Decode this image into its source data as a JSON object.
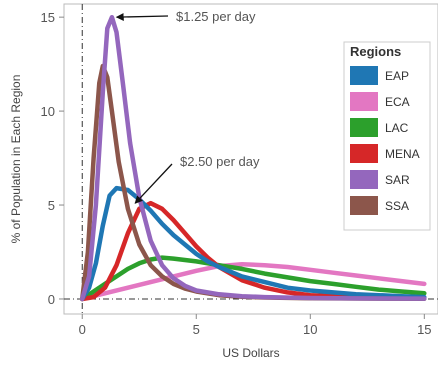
{
  "chart_data": {
    "type": "line",
    "xlabel": "US Dollars",
    "ylabel": "% of Population in Each Region",
    "xlim": [
      -0.8,
      15.6
    ],
    "ylim": [
      -0.8,
      15.7
    ],
    "x_ticks": [
      0,
      5,
      10,
      15
    ],
    "y_ticks": [
      0,
      5,
      10,
      15
    ],
    "grid": false,
    "reference_lines": {
      "vertical_x": 0,
      "horizontal_y": 0,
      "style": "dash-dot"
    },
    "legend": {
      "title": "Regions",
      "placement": "right",
      "entries": [
        "EAP",
        "ECA",
        "LAC",
        "MENA",
        "SAR",
        "SSA"
      ]
    },
    "annotations": [
      {
        "text": "$1.25 per day",
        "target": {
          "x": 1.25,
          "y": 15.0
        }
      },
      {
        "text": "$2.50 per day",
        "target": {
          "x": 2.5,
          "y": 5.1
        }
      }
    ],
    "series": [
      {
        "name": "EAP",
        "color": "#1f77b4",
        "x": [
          0,
          0.3,
          0.6,
          0.9,
          1.2,
          1.5,
          2.0,
          2.5,
          3,
          3.5,
          4,
          4.5,
          5,
          5.5,
          6,
          7,
          8,
          9,
          10,
          11,
          12,
          13,
          14,
          15
        ],
        "y": [
          0,
          0.6,
          1.9,
          3.9,
          5.5,
          5.9,
          5.8,
          5.3,
          4.7,
          4.0,
          3.4,
          2.9,
          2.4,
          2.0,
          1.7,
          1.2,
          0.9,
          0.6,
          0.45,
          0.35,
          0.25,
          0.2,
          0.15,
          0.1
        ]
      },
      {
        "name": "ECA",
        "color": "#e377c2",
        "x": [
          0,
          1,
          2,
          3,
          4,
          5,
          6,
          7,
          8,
          9,
          10,
          11,
          12,
          13,
          14,
          15
        ],
        "y": [
          0,
          0.3,
          0.6,
          0.9,
          1.2,
          1.5,
          1.75,
          1.85,
          1.8,
          1.7,
          1.55,
          1.4,
          1.25,
          1.1,
          0.95,
          0.8
        ]
      },
      {
        "name": "LAC",
        "color": "#2ca02c",
        "x": [
          0,
          0.5,
          1,
          1.5,
          2,
          2.5,
          3,
          3.5,
          4,
          5,
          6,
          7,
          8,
          9,
          10,
          11,
          12,
          13,
          14,
          15
        ],
        "y": [
          0,
          0.4,
          0.8,
          1.2,
          1.6,
          1.9,
          2.1,
          2.2,
          2.15,
          2.0,
          1.8,
          1.6,
          1.35,
          1.15,
          0.95,
          0.8,
          0.65,
          0.5,
          0.4,
          0.3
        ]
      },
      {
        "name": "MENA",
        "color": "#d62728",
        "x": [
          0,
          0.5,
          1,
          1.5,
          2,
          2.5,
          3,
          3.5,
          4,
          4.5,
          5,
          5.5,
          6,
          7,
          8,
          9,
          10,
          12,
          15
        ],
        "y": [
          0,
          0.1,
          0.6,
          1.8,
          3.5,
          4.8,
          5.1,
          4.8,
          4.2,
          3.5,
          2.8,
          2.2,
          1.7,
          1.0,
          0.6,
          0.35,
          0.2,
          0.1,
          0.05
        ]
      },
      {
        "name": "SAR",
        "color": "#9467bd",
        "x": [
          0,
          0.3,
          0.6,
          0.9,
          1.1,
          1.3,
          1.5,
          1.8,
          2.1,
          2.5,
          3,
          3.5,
          4,
          4.5,
          5,
          6,
          7,
          8,
          10,
          12,
          15
        ],
        "y": [
          0,
          1.2,
          5.0,
          11.0,
          14.4,
          15.0,
          14.2,
          11.3,
          8.3,
          5.4,
          3.1,
          1.8,
          1.1,
          0.7,
          0.45,
          0.25,
          0.15,
          0.1,
          0.05,
          0.03,
          0.02
        ]
      },
      {
        "name": "SSA",
        "color": "#8c564b",
        "x": [
          0,
          0.25,
          0.5,
          0.75,
          0.9,
          1.1,
          1.3,
          1.6,
          2.0,
          2.5,
          3,
          3.5,
          4,
          4.5,
          5,
          6,
          7,
          8,
          10,
          15
        ],
        "y": [
          0,
          2.5,
          7.5,
          11.5,
          12.4,
          11.8,
          10.0,
          7.3,
          4.8,
          2.9,
          1.8,
          1.2,
          0.8,
          0.55,
          0.4,
          0.2,
          0.12,
          0.08,
          0.04,
          0.01
        ]
      }
    ]
  }
}
